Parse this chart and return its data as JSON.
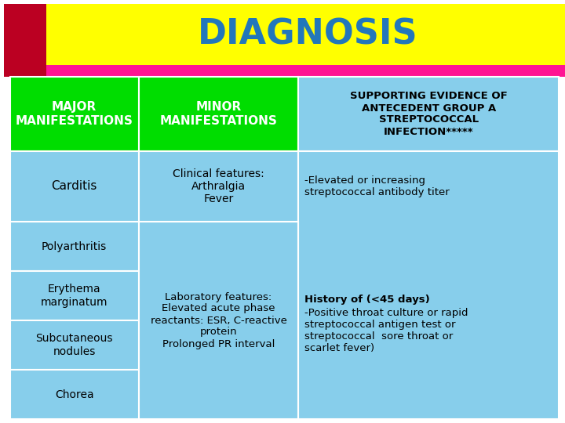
{
  "title": "DIAGNOSIS",
  "title_color": "#2277BB",
  "title_bg": "#FFFF00",
  "accent_bar_color": "#FF1493",
  "header_bg": "#00DD00",
  "cell_bg": "#87CEEB",
  "col1_header": "MAJOR\nMANIFESTATIONS",
  "col2_header": "MINOR\nMANIFESTATIONS",
  "col3_header": "SUPPORTING EVIDENCE OF\nANTECEDENT GROUP A\nSTREPTOCOCCAL\nINFECTION*****",
  "col1_rows": [
    "Carditis",
    "Polyarthritis",
    "Erythema\nmarginatum",
    "Subcutaneous\nnodules",
    "Chorea"
  ],
  "col2_row1": "Clinical features:\nArthralgia\nFever",
  "col2_row2": "Laboratory features:\nElevated acute phase\nreactants: ESR, C-reactive\nprotein\nProlonged PR interval",
  "col3_row1": "-Elevated or increasing\nstreptococcal antibody titer",
  "col3_row2_bold": "History of (<45 days)",
  "col3_row2_rest": "-Positive throat culture or rapid\nstreptococcal antigen test or\nstreptococcal  sore throat or\nscarlet fever)",
  "bg_color": "#FFFFFF",
  "left_red_color": "#BB0022"
}
